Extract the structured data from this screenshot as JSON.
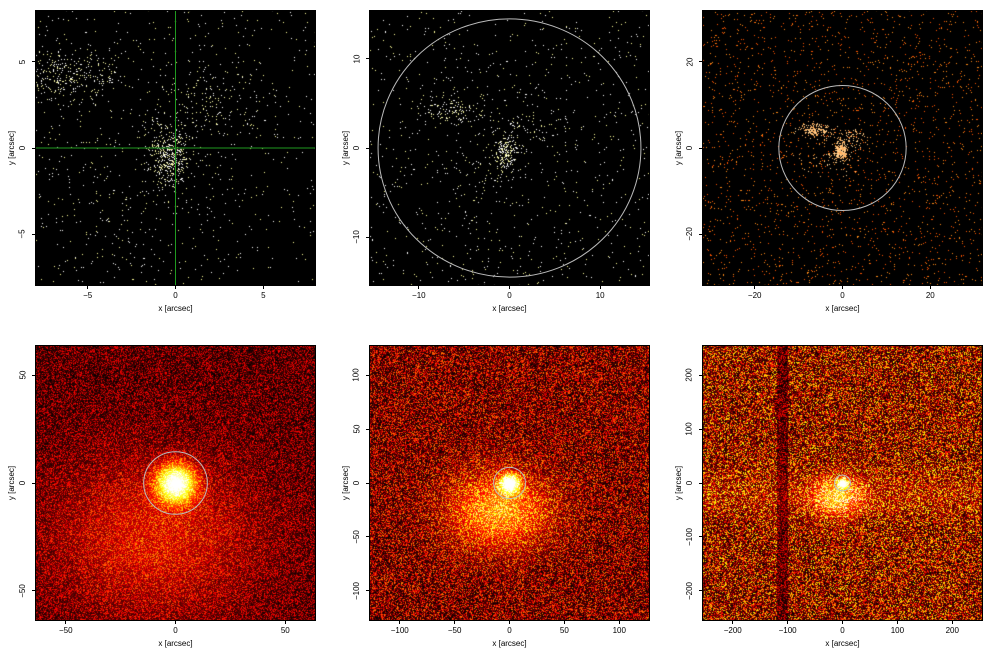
{
  "panels": [
    {
      "id": "panel-1",
      "colormap": "sparse-yellow",
      "xlabel": "x [arcsec]",
      "ylabel": "y [arcsec]",
      "xlim": [
        -8,
        8
      ],
      "ylim": [
        -8,
        8
      ],
      "xticks": [
        -5,
        0,
        5
      ],
      "yticks": [
        -5,
        0,
        5
      ],
      "overlay": {
        "type": "crosshair",
        "color": "#1f9a1f",
        "x": 0,
        "y": 0
      }
    },
    {
      "id": "panel-2",
      "colormap": "sparse-yellow",
      "xlabel": "x [arcsec]",
      "ylabel": "y [arcsec]",
      "xlim": [
        -15.5,
        15.5
      ],
      "ylim": [
        -15.5,
        15.5
      ],
      "xticks": [
        -10,
        0,
        10
      ],
      "yticks": [
        -10,
        0,
        10
      ],
      "overlay": {
        "type": "circle",
        "color": "#bbbbbb",
        "cx": 0,
        "cy": 0,
        "r": 14.5
      }
    },
    {
      "id": "panel-3",
      "colormap": "sparse-orange",
      "xlabel": "x [arcsec]",
      "ylabel": "y [arcsec]",
      "xlim": [
        -32,
        32
      ],
      "ylim": [
        -32,
        32
      ],
      "xticks": [
        -20,
        0,
        20
      ],
      "yticks": [
        -20,
        0,
        20
      ],
      "overlay": {
        "type": "circle",
        "color": "#bbbbbb",
        "cx": 0,
        "cy": 0,
        "r": 14.5
      }
    },
    {
      "id": "panel-4",
      "colormap": "heat-low",
      "xlabel": "x [arcsec]",
      "ylabel": "y [arcsec]",
      "xlim": [
        -64,
        64
      ],
      "ylim": [
        -64,
        64
      ],
      "xticks": [
        -50,
        0,
        50
      ],
      "yticks": [
        -50,
        0,
        50
      ],
      "overlay": {
        "type": "circle",
        "color": "#bbbbbb",
        "cx": 0,
        "cy": 0,
        "r": 14.5
      }
    },
    {
      "id": "panel-5",
      "colormap": "heat-mid",
      "xlabel": "x [arcsec]",
      "ylabel": "y [arcsec]",
      "xlim": [
        -128,
        128
      ],
      "ylim": [
        -128,
        128
      ],
      "xticks": [
        -100,
        -50,
        0,
        50,
        100
      ],
      "yticks": [
        -100,
        -50,
        0,
        50,
        100
      ],
      "overlay": {
        "type": "circle",
        "color": "#bbbbbb",
        "cx": 0,
        "cy": 0,
        "r": 14.5
      }
    },
    {
      "id": "panel-6",
      "colormap": "heat-high",
      "xlabel": "x [arcsec]",
      "ylabel": "y [arcsec]",
      "xlim": [
        -256,
        256
      ],
      "ylim": [
        -256,
        256
      ],
      "xticks": [
        -200,
        -100,
        0,
        100,
        200
      ],
      "yticks": [
        -200,
        -100,
        0,
        100,
        200
      ],
      "overlay": {
        "type": "circle",
        "color": "#bbbbbb",
        "cx": 0,
        "cy": 0,
        "r": 14.5
      }
    }
  ]
}
